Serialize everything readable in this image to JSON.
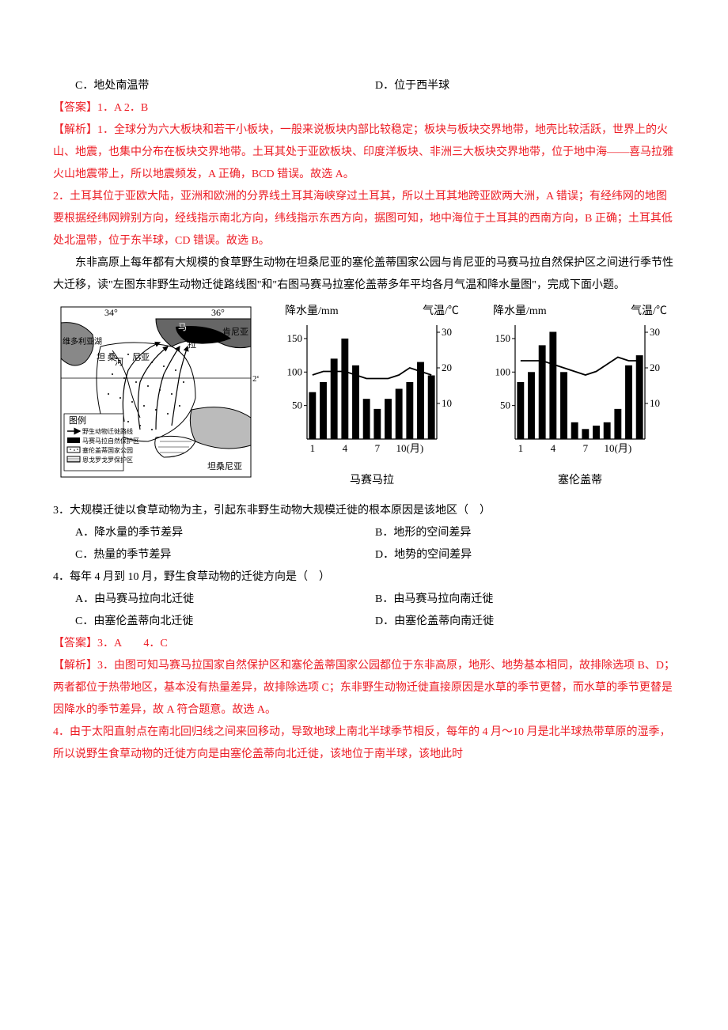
{
  "q2_options": {
    "c": "C．地处南温带",
    "d": "D．位于西半球"
  },
  "answer12": "【答案】1．A   2．B",
  "exp1_label": "【解析】1．",
  "exp1_text": "全球分为六大板块和若干小板块，一般来说板块内部比较稳定；板块与板块交界地带，地壳比较活跃，世界上的火山、地震，也集中分布在板块交界地带。土耳其处于亚欧板块、印度洋板块、非洲三大板块交界地带，位于地中海——喜马拉雅火山地震带上，所以地震频发，A 正确，BCD 错误。故选 A。",
  "exp2_label": "2．",
  "exp2_text": "土耳其位于亚欧大陆，亚洲和欧洲的分界线土耳其海峡穿过土耳其，所以土耳其地跨亚欧两大洲，A 错误；有经纬网的地图要根据经纬网辨别方向，经线指示南北方向，纬线指示东西方向，据图可知，地中海位于土耳其的西南方向，B 正确；土耳其低处北温带，位于东半球，CD 错误。故选 B。",
  "intro34": "东非高原上每年都有大规模的食草野生动物在坦桑尼亚的塞伦盖蒂国家公园与肯尼亚的马赛马拉自然保护区之间进行季节性大迁移，读\"左图东非野生动物迁徙路线图\"和\"右图马赛马拉塞伦盖蒂多年平均各月气温和降水量图\"，完成下面小题。",
  "map": {
    "lon_labels": [
      "34°",
      "36°"
    ],
    "lat_label": "2°",
    "places": {
      "lake": "维多利亚湖",
      "kenya": "肯尼亚",
      "tanzania": "坦桑尼亚",
      "mara": "马",
      "masai": "拉",
      "he": "河",
      "tz_label": "坦 桑 尼亚"
    },
    "legend_title": "图例",
    "legend": [
      "野生动物迁徙路线",
      "马赛马拉自然保护区",
      "塞伦盖蒂国家公园",
      "恩戈罗戈罗保护区"
    ]
  },
  "charts": {
    "precip_label": "降水量/mm",
    "temp_label": "气温/℃",
    "y_precip": [
      "150",
      "100",
      "50"
    ],
    "y_temp": [
      "30",
      "20",
      "10"
    ],
    "x_labels": [
      "1",
      "4",
      "7",
      "10(月)"
    ],
    "masai": {
      "title": "马赛马拉",
      "precip": [
        70,
        85,
        120,
        150,
        110,
        60,
        45,
        60,
        75,
        85,
        115,
        95
      ],
      "temp": [
        18,
        19,
        19,
        19,
        18,
        17,
        17,
        17,
        18,
        20,
        19,
        18
      ]
    },
    "serengeti": {
      "title": "塞伦盖蒂",
      "precip": [
        85,
        100,
        140,
        160,
        100,
        25,
        15,
        20,
        25,
        45,
        110,
        125
      ],
      "temp": [
        22,
        22,
        22,
        21,
        20,
        19,
        18,
        19,
        21,
        23,
        22,
        22
      ]
    },
    "bar_color": "#000000",
    "line_color": "#000000",
    "bg_color": "#ffffff"
  },
  "q3": {
    "stem": "3．大规模迁徙以食草动物为主，引起东非野生动物大规模迁徙的根本原因是该地区（　）",
    "a": "A．降水量的季节差异",
    "b": "B．地形的空间差异",
    "c": "C．热量的季节差异",
    "d": "D．地势的空间差异"
  },
  "q4": {
    "stem": "4．每年 4 月到 10 月，野生食草动物的迁徙方向是（　）",
    "a": "A．由马赛马拉向北迁徙",
    "b": "B．由马赛马拉向南迁徙",
    "c": "C．由塞伦盖蒂向北迁徙",
    "d": "D．由塞伦盖蒂向南迁徙"
  },
  "answer34": "【答案】3．A　　4．C",
  "exp3_label": "【解析】3．",
  "exp3_text": "由图可知马赛马拉国家自然保护区和塞伦盖蒂国家公园都位于东非高原，地形、地势基本相同，故排除选项 B、D；两者都位于热带地区，基本没有热量差异，故排除选项 C；东非野生动物迁徙直接原因是水草的季节更替，而水草的季节更替是因降水的季节差异，故 A 符合题意。故选 A。",
  "exp4_label": "4．",
  "exp4_text": "由于太阳直射点在南北回归线之间来回移动，导致地球上南北半球季节相反，每年的 4 月～10 月是北半球热带草原的湿季，所以说野生食草动物的迁徙方向是由塞伦盖蒂向北迁徙，该地位于南半球，该地此时"
}
